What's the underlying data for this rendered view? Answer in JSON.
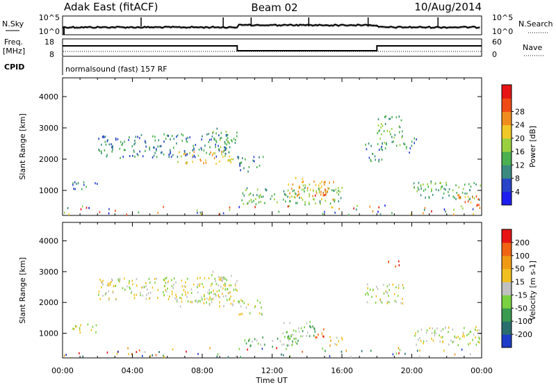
{
  "header": {
    "station": "Adak East (fitACF)",
    "beam": "Beam 02",
    "date": "10/Aug/2014"
  },
  "noise_panel": {
    "left_label": "N.Sky",
    "right_label": "N.Search",
    "left_ticks": [
      "10^5",
      "10^0"
    ],
    "right_ticks": [
      "10^5",
      "10^0"
    ],
    "spikes_hours": [
      4.5,
      9.2,
      10.8,
      14.1,
      17.5,
      21.5
    ]
  },
  "freq_panel": {
    "left_label": "Freq.",
    "left_unit": "[MHz]",
    "right_label": "Nave",
    "left_ticks": [
      "18",
      "8"
    ],
    "right_ticks": [
      "60",
      "0"
    ],
    "freq_steps": [
      {
        "from": 0,
        "to": 10,
        "value": 12
      },
      {
        "from": 10,
        "to": 18,
        "value": 10
      },
      {
        "from": 18,
        "to": 24,
        "value": 12
      }
    ]
  },
  "cpid_panel": {
    "label": "CPID",
    "text": "normalsound (fast) 157 RF"
  },
  "x_axis": {
    "title": "Time UT",
    "range_hours": [
      0,
      24
    ],
    "ticks": [
      "00:00",
      "04:00",
      "08:00",
      "12:00",
      "16:00",
      "20:00",
      "00:00"
    ]
  },
  "chart_data": [
    {
      "type": "heatmap",
      "name": "power",
      "ylabel": "Slant Range [km]",
      "yticks": [
        "1000",
        "2000",
        "3000",
        "4000"
      ],
      "ylim": [
        200,
        4600
      ],
      "colorbar": {
        "label": "Power [dB]",
        "ticks": [
          "4",
          "8",
          "12",
          "16",
          "20",
          "24",
          "28"
        ],
        "colors": [
          "#1e1ef0",
          "#2844c8",
          "#3a8a80",
          "#4ab050",
          "#9ad040",
          "#f0c828",
          "#f08c1e",
          "#f04a14",
          "#e61414"
        ]
      },
      "regions": [
        {
          "t0": 2.0,
          "t1": 9.6,
          "r0": 2050,
          "r1": 2800,
          "slope": -0.08,
          "level": 2
        },
        {
          "t0": 6.5,
          "t1": 9.8,
          "r0": 1850,
          "r1": 2250,
          "slope": 0.05,
          "level": 5
        },
        {
          "t0": 8.5,
          "t1": 10.0,
          "r0": 2200,
          "r1": 2950,
          "slope": 0.2,
          "level": 3
        },
        {
          "t0": 10.0,
          "t1": 11.5,
          "r0": 1600,
          "r1": 2100,
          "slope": 0.0,
          "level": 2
        },
        {
          "t0": 10.2,
          "t1": 16.0,
          "r0": 550,
          "r1": 1100,
          "slope": 0.0,
          "level": 3
        },
        {
          "t0": 12.8,
          "t1": 15.5,
          "r0": 700,
          "r1": 1400,
          "slope": 0.0,
          "level": 5
        },
        {
          "t0": 14.0,
          "t1": 15.2,
          "r0": 800,
          "r1": 1100,
          "slope": 0.0,
          "level": 7
        },
        {
          "t0": 0.5,
          "t1": 2.0,
          "r0": 1000,
          "r1": 1300,
          "slope": 0.0,
          "level": 2
        },
        {
          "t0": 17.3,
          "t1": 18.5,
          "r0": 1900,
          "r1": 2500,
          "slope": 0.0,
          "level": 2
        },
        {
          "t0": 18.0,
          "t1": 19.5,
          "r0": 2400,
          "r1": 3400,
          "slope": 0.0,
          "level": 3
        },
        {
          "t0": 19.5,
          "t1": 20.3,
          "r0": 2200,
          "r1": 2700,
          "slope": 0.0,
          "level": 2
        },
        {
          "t0": 20.0,
          "t1": 24.0,
          "r0": 700,
          "r1": 1300,
          "slope": 0.0,
          "level": 3
        },
        {
          "t0": 22.5,
          "t1": 24.0,
          "r0": 500,
          "r1": 900,
          "slope": 0.0,
          "level": 6
        },
        {
          "t0": 0.0,
          "t1": 24.0,
          "r0": 220,
          "r1": 520,
          "slope": 0.0,
          "level": 4
        }
      ]
    },
    {
      "type": "heatmap",
      "name": "velocity",
      "ylabel": "Slant Range [km]",
      "yticks": [
        "1000",
        "2000",
        "3000",
        "4000"
      ],
      "ylim": [
        200,
        4600
      ],
      "colorbar": {
        "label": "Velocity [m s-1]",
        "ticks": [
          "200",
          "100",
          "50",
          "15",
          "-15",
          "-50",
          "-100",
          "-200"
        ],
        "colors": [
          "#1e3cc8",
          "#2a6e6e",
          "#3a9a50",
          "#7ad040",
          "#c0c0c0",
          "#f0c020",
          "#f09a14",
          "#f06414",
          "#e61414"
        ]
      },
      "regions": [
        {
          "t0": 2.0,
          "t1": 9.6,
          "r0": 2050,
          "r1": 2800,
          "slope": -0.08,
          "level": 4
        },
        {
          "t0": 6.5,
          "t1": 9.8,
          "r0": 1850,
          "r1": 2250,
          "slope": 0.05,
          "level": 4
        },
        {
          "t0": 8.5,
          "t1": 10.0,
          "r0": 2200,
          "r1": 2950,
          "slope": 0.2,
          "level": 4
        },
        {
          "t0": 10.0,
          "t1": 11.5,
          "r0": 1600,
          "r1": 2100,
          "slope": 0.0,
          "level": 4
        },
        {
          "t0": 10.2,
          "t1": 13.5,
          "r0": 550,
          "r1": 900,
          "slope": 0.0,
          "level": 3
        },
        {
          "t0": 12.5,
          "t1": 14.5,
          "r0": 800,
          "r1": 1400,
          "slope": 0.0,
          "level": 3
        },
        {
          "t0": 14.2,
          "t1": 15.0,
          "r0": 850,
          "r1": 1150,
          "slope": 0.0,
          "level": 7
        },
        {
          "t0": 15.0,
          "t1": 16.0,
          "r0": 600,
          "r1": 900,
          "slope": 0.0,
          "level": 5
        },
        {
          "t0": 0.5,
          "t1": 2.0,
          "r0": 1000,
          "r1": 1300,
          "slope": 0.0,
          "level": 4
        },
        {
          "t0": 17.3,
          "t1": 19.5,
          "r0": 1900,
          "r1": 2600,
          "slope": 0.0,
          "level": 4
        },
        {
          "t0": 18.6,
          "t1": 19.3,
          "r0": 3150,
          "r1": 3400,
          "slope": 0.0,
          "level": 8
        },
        {
          "t0": 20.0,
          "t1": 24.0,
          "r0": 600,
          "r1": 1200,
          "slope": 0.0,
          "level": 4
        },
        {
          "t0": 0.0,
          "t1": 24.0,
          "r0": 220,
          "r1": 520,
          "slope": 0.0,
          "level": 5
        }
      ]
    }
  ]
}
